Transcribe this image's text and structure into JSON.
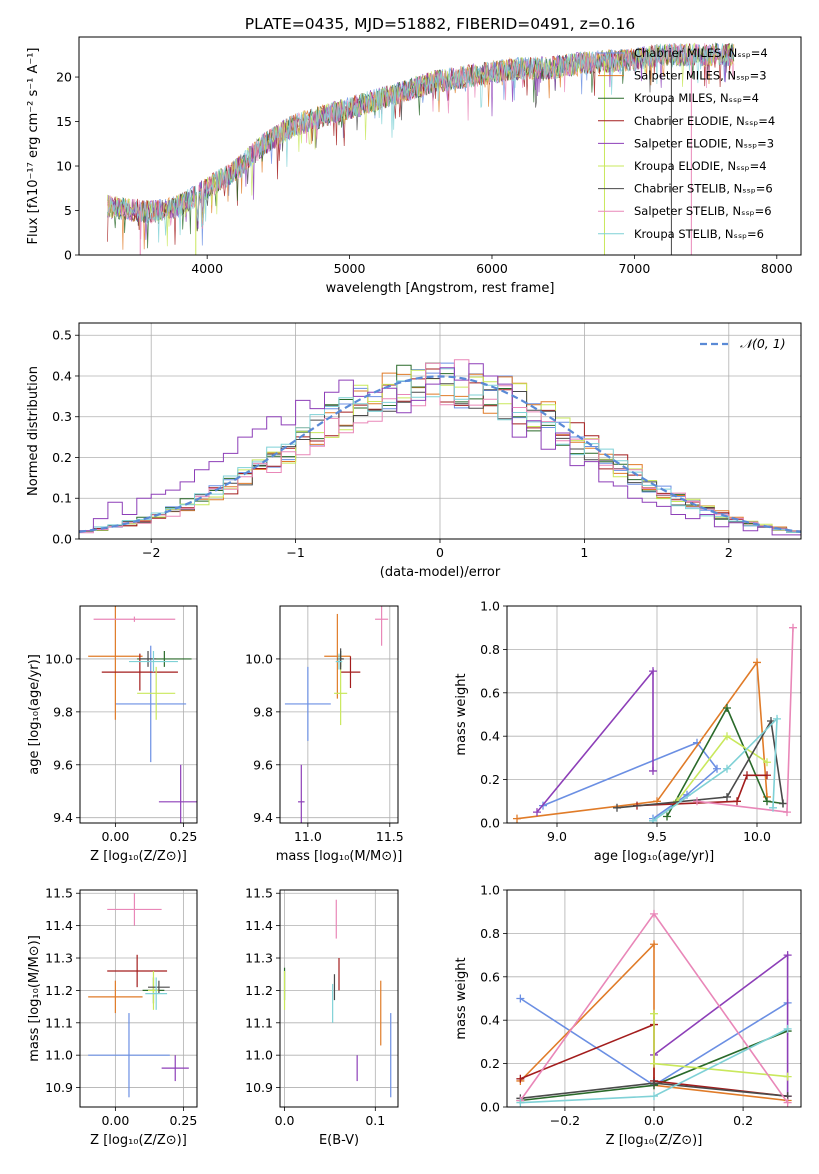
{
  "figure": {
    "title": "PLATE=0435, MJD=51882, FIBERID=0491, z=0.16"
  },
  "colors": [
    "#6b8fe3",
    "#e07b28",
    "#2a6a2a",
    "#a31d1d",
    "#8d3fb8",
    "#c9e85c",
    "#4a4a4a",
    "#e987b8",
    "#7fd1d6"
  ],
  "chart_data": [
    {
      "id": "spectrum",
      "type": "line",
      "xlabel": "wavelength [Angstrom, rest frame]",
      "ylabel": "Flux [fλ10⁻¹⁷ erg cm⁻² s⁻¹ A⁻¹]",
      "xlim": [
        3100,
        8170
      ],
      "ylim": [
        0,
        24.5
      ],
      "xticks": [
        4000,
        5000,
        6000,
        7000,
        8000
      ],
      "yticks": [
        0,
        5,
        10,
        15,
        20
      ],
      "legend": [
        "Chabrier MILES, Nₛₛₚ=4",
        "Salpeter MILES, Nₛₛₚ=3",
        "Kroupa MILES, Nₛₛₚ=4",
        "Chabrier ELODIE, Nₛₛₚ=4",
        "Salpeter ELODIE, Nₛₛₚ=3",
        "Kroupa ELODIE, Nₛₛₚ=4",
        "Chabrier STELIB, Nₛₛₚ=6",
        "Salpeter STELIB, Nₛₛₚ=6",
        "Kroupa STELIB, Nₛₛₚ=6"
      ],
      "legend_placement": "right",
      "trend": [
        [
          3300,
          5.5
        ],
        [
          3600,
          4.8
        ],
        [
          3800,
          5.5
        ],
        [
          4000,
          7.5
        ],
        [
          4200,
          9.5
        ],
        [
          4400,
          12.5
        ],
        [
          4600,
          14.5
        ],
        [
          4800,
          15.5
        ],
        [
          5000,
          16.5
        ],
        [
          5200,
          17.5
        ],
        [
          5400,
          18.5
        ],
        [
          5600,
          19.5
        ],
        [
          5800,
          20.0
        ],
        [
          6000,
          20.5
        ],
        [
          6200,
          21.0
        ],
        [
          6400,
          21.0
        ],
        [
          6600,
          21.5
        ],
        [
          6800,
          21.8
        ],
        [
          7000,
          22.0
        ],
        [
          7200,
          22.5
        ],
        [
          7400,
          22.5
        ],
        [
          7600,
          22.5
        ]
      ]
    },
    {
      "id": "residuals",
      "type": "histogram",
      "xlabel": "(data-model)/error",
      "ylabel": "Normed distribution",
      "xlim": [
        -2.5,
        2.5
      ],
      "ylim": [
        0,
        0.53
      ],
      "xticks": [
        -2,
        -1,
        0,
        1,
        2
      ],
      "yticks": [
        0,
        0.1,
        0.2,
        0.3,
        0.4,
        0.5
      ],
      "legend": [
        "𝒩(0, 1)"
      ],
      "legend_placement": "top-right",
      "bin_width": 0.1,
      "highlight_series": [
        0.02,
        0.05,
        0.09,
        0.06,
        0.1,
        0.11,
        0.12,
        0.14,
        0.17,
        0.19,
        0.21,
        0.25,
        0.27,
        0.3,
        0.28,
        0.34,
        0.32,
        0.36,
        0.39,
        0.35,
        0.36,
        0.37,
        0.31,
        0.34,
        0.38,
        0.42,
        0.39,
        0.43,
        0.4,
        0.38,
        0.25,
        0.29,
        0.22,
        0.26,
        0.18,
        0.19,
        0.14,
        0.13,
        0.1,
        0.09,
        0.08,
        0.06,
        0.05,
        0.06,
        0.03,
        0.04,
        0.02,
        0.03,
        0.01,
        0.01
      ]
    },
    {
      "id": "age-vs-Z",
      "type": "scatter",
      "error_bars": true,
      "xlabel": "Z [log₁₀(Z/Z⊙)]",
      "ylabel": "age  [log₁₀(age/yr)]",
      "xlim": [
        -0.13,
        0.3
      ],
      "ylim": [
        9.38,
        10.2
      ],
      "xticks": [
        0.0,
        0.25
      ],
      "yticks": [
        9.4,
        9.6,
        9.8,
        10.0
      ],
      "points": [
        {
          "x": 0.13,
          "y": 9.83,
          "xerr": 0.13,
          "yerr": 0.22,
          "c": 0
        },
        {
          "x": 0.0,
          "y": 10.01,
          "xerr": 0.1,
          "yerr": 0.24,
          "c": 1
        },
        {
          "x": 0.18,
          "y": 10.0,
          "xerr": 0.1,
          "yerr": 0.03,
          "c": 2
        },
        {
          "x": 0.09,
          "y": 9.95,
          "xerr": 0.14,
          "yerr": 0.07,
          "c": 3
        },
        {
          "x": 0.24,
          "y": 9.46,
          "xerr": 0.08,
          "yerr": 0.14,
          "c": 4
        },
        {
          "x": 0.15,
          "y": 9.87,
          "xerr": 0.07,
          "yerr": 0.1,
          "c": 5
        },
        {
          "x": 0.12,
          "y": 10.0,
          "xerr": 0.03,
          "yerr": 0.03,
          "c": 6
        },
        {
          "x": 0.07,
          "y": 10.15,
          "xerr": 0.15,
          "yerr": 0.01,
          "c": 7
        },
        {
          "x": 0.14,
          "y": 9.99,
          "xerr": 0.09,
          "yerr": 0.04,
          "c": 8
        }
      ]
    },
    {
      "id": "age-vs-mass",
      "type": "scatter",
      "error_bars": true,
      "xlabel": "mass [log₁₀(M/M⊙)]",
      "ylabel": "",
      "xlim": [
        10.83,
        11.55
      ],
      "ylim": [
        9.38,
        10.2
      ],
      "xticks": [
        11.0,
        11.5
      ],
      "yticks": [
        9.4,
        9.6,
        9.8,
        10.0
      ],
      "points": [
        {
          "x": 11.0,
          "y": 9.83,
          "xerr": 0.14,
          "yerr": 0.14,
          "c": 0
        },
        {
          "x": 11.18,
          "y": 10.01,
          "xerr": 0.08,
          "yerr": 0.16,
          "c": 1
        },
        {
          "x": 11.2,
          "y": 10.0,
          "xerr": 0.01,
          "yerr": 0.03,
          "c": 2
        },
        {
          "x": 11.26,
          "y": 9.95,
          "xerr": 0.06,
          "yerr": 0.06,
          "c": 3
        },
        {
          "x": 10.96,
          "y": 9.46,
          "xerr": 0.02,
          "yerr": 0.14,
          "c": 4
        },
        {
          "x": 11.2,
          "y": 9.87,
          "xerr": 0.04,
          "yerr": 0.12,
          "c": 5
        },
        {
          "x": 11.2,
          "y": 10.0,
          "xerr": 0.02,
          "yerr": 0.04,
          "c": 6
        },
        {
          "x": 11.45,
          "y": 10.15,
          "xerr": 0.04,
          "yerr": 0.1,
          "c": 7
        },
        {
          "x": 11.19,
          "y": 9.99,
          "xerr": 0.02,
          "yerr": 0.03,
          "c": 8
        }
      ]
    },
    {
      "id": "weight-vs-age",
      "type": "line",
      "markers": "+",
      "xlabel": "age  [log₁₀(age/yr)]",
      "ylabel": "mass weight",
      "xlim": [
        8.75,
        10.22
      ],
      "ylim": [
        0,
        1.0
      ],
      "xticks": [
        9.0,
        9.5,
        10.0
      ],
      "yticks": [
        0.0,
        0.2,
        0.4,
        0.6,
        0.8,
        1.0
      ],
      "series": [
        {
          "c": 0,
          "x": [
            8.93,
            9.7,
            9.8,
            9.65,
            9.48
          ],
          "y": [
            0.08,
            0.37,
            0.25,
            0.13,
            0.02
          ]
        },
        {
          "c": 1,
          "x": [
            8.8,
            9.5,
            10.0,
            10.05
          ],
          "y": [
            0.02,
            0.1,
            0.74,
            0.12
          ]
        },
        {
          "c": 2,
          "x": [
            9.55,
            9.85,
            10.05,
            10.13
          ],
          "y": [
            0.03,
            0.53,
            0.1,
            0.09
          ]
        },
        {
          "c": 3,
          "x": [
            9.4,
            9.9,
            9.95,
            10.05
          ],
          "y": [
            0.08,
            0.1,
            0.22,
            0.22
          ]
        },
        {
          "c": 4,
          "x": [
            8.9,
            9.48,
            9.48
          ],
          "y": [
            0.05,
            0.7,
            0.24
          ]
        },
        {
          "c": 5,
          "x": [
            9.6,
            9.85,
            10.05
          ],
          "y": [
            0.1,
            0.4,
            0.28
          ]
        },
        {
          "c": 6,
          "x": [
            9.3,
            9.85,
            10.07,
            10.13
          ],
          "y": [
            0.07,
            0.12,
            0.47,
            0.09
          ]
        },
        {
          "c": 7,
          "x": [
            9.7,
            10.15,
            10.18
          ],
          "y": [
            0.1,
            0.05,
            0.9
          ]
        },
        {
          "c": 8,
          "x": [
            9.48,
            9.85,
            10.1,
            10.08
          ],
          "y": [
            0.01,
            0.25,
            0.48,
            0.07
          ]
        }
      ]
    },
    {
      "id": "mass-vs-Z",
      "type": "scatter",
      "error_bars": true,
      "xlabel": "Z [log₁₀(Z/Z⊙)]",
      "ylabel": "mass [log₁₀(M/M⊙)]",
      "xlim": [
        -0.13,
        0.3
      ],
      "ylim": [
        10.84,
        11.51
      ],
      "xticks": [
        0.0,
        0.25
      ],
      "yticks": [
        10.9,
        11.0,
        11.1,
        11.2,
        11.3,
        11.4,
        11.5
      ],
      "points": [
        {
          "x": 0.05,
          "y": 11.0,
          "xerr": 0.15,
          "yerr": 0.13,
          "c": 0
        },
        {
          "x": 0.0,
          "y": 11.18,
          "xerr": 0.1,
          "yerr": 0.05,
          "c": 1
        },
        {
          "x": 0.14,
          "y": 11.2,
          "xerr": 0.04,
          "yerr": 0.04,
          "c": 2
        },
        {
          "x": 0.08,
          "y": 11.26,
          "xerr": 0.11,
          "yerr": 0.05,
          "c": 3
        },
        {
          "x": 0.22,
          "y": 10.96,
          "xerr": 0.05,
          "yerr": 0.04,
          "c": 4
        },
        {
          "x": 0.14,
          "y": 11.2,
          "xerr": 0.02,
          "yerr": 0.06,
          "c": 5
        },
        {
          "x": 0.16,
          "y": 11.21,
          "xerr": 0.04,
          "yerr": 0.02,
          "c": 6
        },
        {
          "x": 0.07,
          "y": 11.45,
          "xerr": 0.1,
          "yerr": 0.05,
          "c": 7
        },
        {
          "x": 0.15,
          "y": 11.19,
          "xerr": 0.04,
          "yerr": 0.05,
          "c": 8
        }
      ]
    },
    {
      "id": "mass-vs-EBV",
      "type": "scatter",
      "error_bars": true,
      "xlabel": "E(B-V)",
      "ylabel": "",
      "xlim": [
        -0.005,
        0.125
      ],
      "ylim": [
        10.84,
        11.51
      ],
      "xticks": [
        0.0,
        0.1
      ],
      "yticks": [
        10.9,
        11.0,
        11.1,
        11.2,
        11.3,
        11.4,
        11.5
      ],
      "points": [
        {
          "x": 0.117,
          "y": 11.0,
          "xerr": 0,
          "yerr": 0.13,
          "c": 0
        },
        {
          "x": 0.106,
          "y": 11.13,
          "xerr": 0,
          "yerr": 0.1,
          "c": 1
        },
        {
          "x": 0.0,
          "y": 11.22,
          "xerr": 0,
          "yerr": 0.05,
          "c": 2
        },
        {
          "x": 0.06,
          "y": 11.25,
          "xerr": 0,
          "yerr": 0.05,
          "c": 3
        },
        {
          "x": 0.08,
          "y": 10.96,
          "xerr": 0,
          "yerr": 0.04,
          "c": 4
        },
        {
          "x": 0.0,
          "y": 11.2,
          "xerr": 0,
          "yerr": 0.06,
          "c": 5
        },
        {
          "x": 0.055,
          "y": 11.21,
          "xerr": 0,
          "yerr": 0.04,
          "c": 6
        },
        {
          "x": 0.057,
          "y": 11.42,
          "xerr": 0,
          "yerr": 0.06,
          "c": 7
        },
        {
          "x": 0.053,
          "y": 11.16,
          "xerr": 0,
          "yerr": 0.06,
          "c": 8
        }
      ]
    },
    {
      "id": "weight-vs-Z",
      "type": "line",
      "markers": "+",
      "xlabel": "Z [log₁₀(Z/Z⊙)]",
      "ylabel": "mass weight",
      "xlim": [
        -0.33,
        0.33
      ],
      "ylim": [
        0,
        1.0
      ],
      "xticks": [
        -0.2,
        0.0,
        0.2
      ],
      "yticks": [
        0.0,
        0.2,
        0.4,
        0.6,
        0.8,
        1.0
      ],
      "series": [
        {
          "c": 0,
          "x": [
            -0.3,
            0.0,
            0.3
          ],
          "y": [
            0.5,
            0.1,
            0.48
          ]
        },
        {
          "c": 1,
          "x": [
            -0.3,
            0.0,
            0.0,
            0.3
          ],
          "y": [
            0.12,
            0.75,
            0.1,
            0.03
          ]
        },
        {
          "c": 2,
          "x": [
            -0.3,
            0.0,
            0.3
          ],
          "y": [
            0.03,
            0.1,
            0.35
          ]
        },
        {
          "c": 3,
          "x": [
            -0.3,
            0.0,
            0.0,
            0.3
          ],
          "y": [
            0.13,
            0.38,
            0.12,
            0.05
          ]
        },
        {
          "c": 4,
          "x": [
            0.0,
            0.3,
            0.3
          ],
          "y": [
            0.24,
            0.7,
            0.05
          ]
        },
        {
          "c": 5,
          "x": [
            0.0,
            0.0,
            0.3
          ],
          "y": [
            0.43,
            0.2,
            0.14
          ]
        },
        {
          "c": 6,
          "x": [
            -0.3,
            0.0,
            0.3
          ],
          "y": [
            0.04,
            0.11,
            0.05
          ]
        },
        {
          "c": 7,
          "x": [
            -0.3,
            0.0,
            0.3
          ],
          "y": [
            0.03,
            0.89,
            0.02
          ]
        },
        {
          "c": 8,
          "x": [
            -0.3,
            0.0,
            0.3
          ],
          "y": [
            0.02,
            0.05,
            0.36
          ]
        }
      ]
    }
  ]
}
